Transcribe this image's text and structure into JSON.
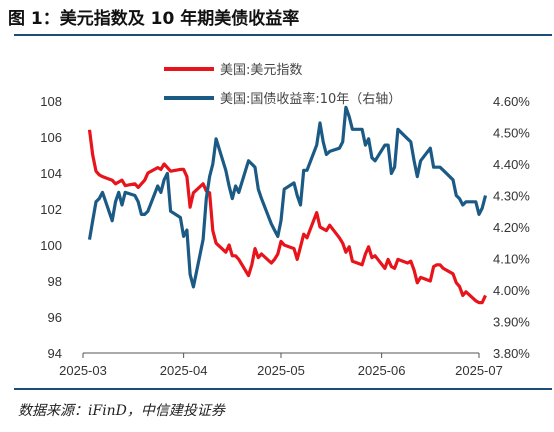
{
  "figure": {
    "title": "图 1：美元指数及 10 年期美债收益率",
    "source": "数据来源：iFinD，中信建投证券"
  },
  "colors": {
    "usd_index": "#e8141b",
    "us10y": "#1c5a86",
    "axis": "#555555",
    "rule": "#1b4e78"
  },
  "chart_data": {
    "type": "line",
    "legend_position": "top-center",
    "grid": false,
    "x_ticks": [
      "2025-03",
      "2025-04",
      "2025-05",
      "2025-06",
      "2025-07"
    ],
    "y_left": {
      "ylim": [
        94,
        108
      ],
      "ticks": [
        94,
        96,
        98,
        100,
        102,
        104,
        106,
        108
      ]
    },
    "y_right": {
      "ylim": [
        3.8,
        4.6
      ],
      "ticks": [
        "3.80%",
        "3.90%",
        "4.00%",
        "4.10%",
        "4.20%",
        "4.30%",
        "4.40%",
        "4.50%",
        "4.60%"
      ]
    },
    "series": [
      {
        "name": "美国:美元指数",
        "axis": "left",
        "points": [
          [
            "2025-03-03",
            106.4
          ],
          [
            "2025-03-04",
            105.0
          ],
          [
            "2025-03-05",
            104.1
          ],
          [
            "2025-03-06",
            103.9
          ],
          [
            "2025-03-07",
            103.8
          ],
          [
            "2025-03-10",
            103.6
          ],
          [
            "2025-03-11",
            103.4
          ],
          [
            "2025-03-12",
            103.5
          ],
          [
            "2025-03-13",
            103.6
          ],
          [
            "2025-03-14",
            103.3
          ],
          [
            "2025-03-17",
            103.4
          ],
          [
            "2025-03-18",
            103.2
          ],
          [
            "2025-03-19",
            103.4
          ],
          [
            "2025-03-20",
            103.6
          ],
          [
            "2025-03-21",
            104.0
          ],
          [
            "2025-03-24",
            104.3
          ],
          [
            "2025-03-25",
            104.2
          ],
          [
            "2025-03-26",
            104.5
          ],
          [
            "2025-03-27",
            104.3
          ],
          [
            "2025-03-28",
            104.1
          ],
          [
            "2025-03-31",
            104.2
          ],
          [
            "2025-04-01",
            104.2
          ],
          [
            "2025-04-02",
            103.8
          ],
          [
            "2025-04-03",
            102.1
          ],
          [
            "2025-04-04",
            102.9
          ],
          [
            "2025-04-07",
            103.4
          ],
          [
            "2025-04-08",
            103.0
          ],
          [
            "2025-04-09",
            102.9
          ],
          [
            "2025-04-10",
            100.8
          ],
          [
            "2025-04-11",
            100.1
          ],
          [
            "2025-04-14",
            99.6
          ],
          [
            "2025-04-15",
            100.0
          ],
          [
            "2025-04-16",
            99.4
          ],
          [
            "2025-04-17",
            99.4
          ],
          [
            "2025-04-18",
            99.2
          ],
          [
            "2025-04-21",
            98.3
          ],
          [
            "2025-04-22",
            98.9
          ],
          [
            "2025-04-23",
            99.8
          ],
          [
            "2025-04-24",
            99.3
          ],
          [
            "2025-04-25",
            99.5
          ],
          [
            "2025-04-28",
            99.0
          ],
          [
            "2025-04-29",
            99.2
          ],
          [
            "2025-04-30",
            99.5
          ],
          [
            "2025-05-01",
            100.2
          ],
          [
            "2025-05-02",
            100.0
          ],
          [
            "2025-05-05",
            99.8
          ],
          [
            "2025-05-06",
            99.2
          ],
          [
            "2025-05-07",
            99.9
          ],
          [
            "2025-05-08",
            100.6
          ],
          [
            "2025-05-09",
            100.4
          ],
          [
            "2025-05-12",
            101.8
          ],
          [
            "2025-05-13",
            101.0
          ],
          [
            "2025-05-14",
            100.9
          ],
          [
            "2025-05-15",
            100.8
          ],
          [
            "2025-05-16",
            101.1
          ],
          [
            "2025-05-19",
            100.4
          ],
          [
            "2025-05-20",
            100.1
          ],
          [
            "2025-05-21",
            99.6
          ],
          [
            "2025-05-22",
            99.9
          ],
          [
            "2025-05-23",
            99.1
          ],
          [
            "2025-05-26",
            98.9
          ],
          [
            "2025-05-27",
            99.5
          ],
          [
            "2025-05-28",
            99.9
          ],
          [
            "2025-05-29",
            99.3
          ],
          [
            "2025-05-30",
            99.4
          ],
          [
            "2025-06-02",
            98.7
          ],
          [
            "2025-06-03",
            99.2
          ],
          [
            "2025-06-04",
            98.8
          ],
          [
            "2025-06-05",
            98.7
          ],
          [
            "2025-06-06",
            99.2
          ],
          [
            "2025-06-09",
            99.0
          ],
          [
            "2025-06-10",
            99.1
          ],
          [
            "2025-06-11",
            98.6
          ],
          [
            "2025-06-12",
            97.9
          ],
          [
            "2025-06-13",
            98.2
          ],
          [
            "2025-06-16",
            98.0
          ],
          [
            "2025-06-17",
            98.8
          ],
          [
            "2025-06-18",
            98.9
          ],
          [
            "2025-06-19",
            98.9
          ],
          [
            "2025-06-20",
            98.7
          ],
          [
            "2025-06-23",
            98.4
          ],
          [
            "2025-06-24",
            97.9
          ],
          [
            "2025-06-25",
            97.7
          ],
          [
            "2025-06-26",
            97.2
          ],
          [
            "2025-06-27",
            97.4
          ],
          [
            "2025-06-30",
            96.9
          ],
          [
            "2025-07-01",
            96.8
          ],
          [
            "2025-07-02",
            96.8
          ],
          [
            "2025-07-03",
            97.2
          ]
        ]
      },
      {
        "name": "美国:国债收益率:10年（右轴）",
        "axis": "right",
        "points": [
          [
            "2025-03-03",
            4.16
          ],
          [
            "2025-03-04",
            4.22
          ],
          [
            "2025-03-05",
            4.28
          ],
          [
            "2025-03-06",
            4.29
          ],
          [
            "2025-03-07",
            4.31
          ],
          [
            "2025-03-10",
            4.22
          ],
          [
            "2025-03-11",
            4.28
          ],
          [
            "2025-03-12",
            4.31
          ],
          [
            "2025-03-13",
            4.27
          ],
          [
            "2025-03-14",
            4.31
          ],
          [
            "2025-03-17",
            4.3
          ],
          [
            "2025-03-18",
            4.28
          ],
          [
            "2025-03-19",
            4.24
          ],
          [
            "2025-03-20",
            4.24
          ],
          [
            "2025-03-21",
            4.25
          ],
          [
            "2025-03-24",
            4.33
          ],
          [
            "2025-03-25",
            4.31
          ],
          [
            "2025-03-26",
            4.35
          ],
          [
            "2025-03-27",
            4.37
          ],
          [
            "2025-03-28",
            4.25
          ],
          [
            "2025-03-31",
            4.23
          ],
          [
            "2025-04-01",
            4.17
          ],
          [
            "2025-04-02",
            4.19
          ],
          [
            "2025-04-03",
            4.05
          ],
          [
            "2025-04-04",
            4.01
          ],
          [
            "2025-04-07",
            4.16
          ],
          [
            "2025-04-08",
            4.29
          ],
          [
            "2025-04-09",
            4.36
          ],
          [
            "2025-04-10",
            4.4
          ],
          [
            "2025-04-11",
            4.48
          ],
          [
            "2025-04-14",
            4.38
          ],
          [
            "2025-04-15",
            4.33
          ],
          [
            "2025-04-16",
            4.29
          ],
          [
            "2025-04-17",
            4.33
          ],
          [
            "2025-04-18",
            4.31
          ],
          [
            "2025-04-21",
            4.41
          ],
          [
            "2025-04-22",
            4.4
          ],
          [
            "2025-04-23",
            4.39
          ],
          [
            "2025-04-24",
            4.32
          ],
          [
            "2025-04-25",
            4.29
          ],
          [
            "2025-04-28",
            4.21
          ],
          [
            "2025-04-29",
            4.19
          ],
          [
            "2025-04-30",
            4.17
          ],
          [
            "2025-05-01",
            4.22
          ],
          [
            "2025-05-02",
            4.32
          ],
          [
            "2025-05-05",
            4.34
          ],
          [
            "2025-05-06",
            4.3
          ],
          [
            "2025-05-07",
            4.27
          ],
          [
            "2025-05-08",
            4.38
          ],
          [
            "2025-05-09",
            4.38
          ],
          [
            "2025-05-12",
            4.46
          ],
          [
            "2025-05-13",
            4.53
          ],
          [
            "2025-05-14",
            4.47
          ],
          [
            "2025-05-15",
            4.43
          ],
          [
            "2025-05-16",
            4.44
          ],
          [
            "2025-05-19",
            4.45
          ],
          [
            "2025-05-20",
            4.47
          ],
          [
            "2025-05-21",
            4.58
          ],
          [
            "2025-05-22",
            4.55
          ],
          [
            "2025-05-23",
            4.51
          ],
          [
            "2025-05-26",
            4.51
          ],
          [
            "2025-05-27",
            4.46
          ],
          [
            "2025-05-28",
            4.48
          ],
          [
            "2025-05-29",
            4.42
          ],
          [
            "2025-05-30",
            4.41
          ],
          [
            "2025-06-02",
            4.46
          ],
          [
            "2025-06-03",
            4.46
          ],
          [
            "2025-06-04",
            4.37
          ],
          [
            "2025-06-05",
            4.39
          ],
          [
            "2025-06-06",
            4.51
          ],
          [
            "2025-06-09",
            4.48
          ],
          [
            "2025-06-10",
            4.47
          ],
          [
            "2025-06-11",
            4.41
          ],
          [
            "2025-06-12",
            4.36
          ],
          [
            "2025-06-13",
            4.41
          ],
          [
            "2025-06-16",
            4.45
          ],
          [
            "2025-06-17",
            4.39
          ],
          [
            "2025-06-18",
            4.39
          ],
          [
            "2025-06-19",
            4.39
          ],
          [
            "2025-06-20",
            4.38
          ],
          [
            "2025-06-23",
            4.35
          ],
          [
            "2025-06-24",
            4.3
          ],
          [
            "2025-06-25",
            4.29
          ],
          [
            "2025-06-26",
            4.27
          ],
          [
            "2025-06-27",
            4.28
          ],
          [
            "2025-06-30",
            4.28
          ],
          [
            "2025-07-01",
            4.24
          ],
          [
            "2025-07-02",
            4.26
          ],
          [
            "2025-07-03",
            4.3
          ]
        ]
      }
    ]
  }
}
